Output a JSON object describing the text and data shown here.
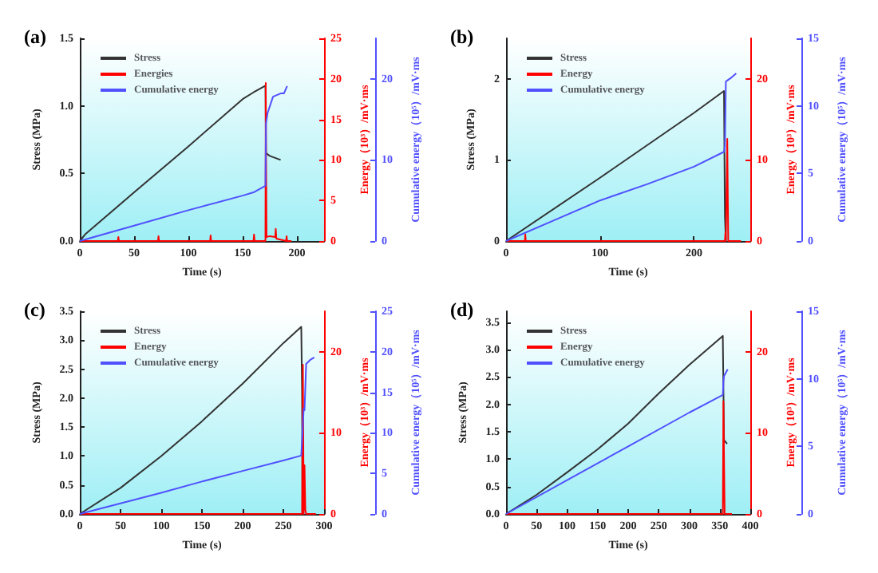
{
  "chart_data": [
    {
      "type": "line",
      "title": "(a)",
      "xlabel": "Time (s)",
      "ylabel": "Stress (MPa)",
      "y2label": "Energy（10³）/mV·ms",
      "y3label": "Cumulative energy（10⁵）/mV·ms",
      "legend": "top left",
      "grid": false,
      "xlim": [
        0,
        225
      ],
      "xticks": [
        0,
        50,
        100,
        150,
        200
      ],
      "ylim": [
        0,
        1.5
      ],
      "yticks": [
        {
          "value": 0,
          "label": "0.0"
        },
        0.5,
        {
          "value": 1,
          "label": "1.0"
        },
        1.5
      ],
      "y2lim": [
        0,
        25
      ],
      "y2ticks": [
        0,
        5,
        10,
        15,
        20,
        25
      ],
      "y3lim": [
        0,
        25
      ],
      "y3ticks": [
        0,
        10,
        20
      ],
      "series": [
        {
          "name": "Stress",
          "color": "#333333",
          "x": [
            0,
            5,
            50,
            100,
            150,
            160,
            171,
            171.5,
            175,
            185
          ],
          "values": [
            0,
            0.05,
            0.36,
            0.7,
            1.05,
            1.1,
            1.15,
            0.65,
            0.63,
            0.6
          ]
        },
        {
          "name": "Energies",
          "color": "#ff0000",
          "axis": "y2",
          "x": [
            0,
            35,
            35.5,
            36,
            72,
            72.5,
            73,
            120,
            120.5,
            121,
            160,
            160.5,
            161,
            171,
            171.3,
            171.6,
            172,
            175,
            180,
            180.5,
            181,
            190,
            190.5,
            191,
            195
          ],
          "values": [
            0,
            0,
            0.5,
            0,
            0,
            0.6,
            0,
            0,
            0.7,
            0,
            0,
            0.8,
            0,
            0,
            19.5,
            10,
            0.5,
            0.6,
            0.5,
            1.5,
            0.3,
            0,
            0.6,
            0,
            0
          ]
        },
        {
          "name": "Cumulative energy",
          "color": "#5050ff",
          "axis": "y3",
          "x": [
            0,
            50,
            100,
            150,
            160,
            171,
            171.5,
            173,
            178,
            185,
            188,
            191
          ],
          "values": [
            0,
            1.9,
            3.8,
            5.6,
            6,
            6.8,
            14.5,
            15.8,
            17.8,
            18.2,
            18.2,
            19.1
          ]
        }
      ]
    },
    {
      "type": "line",
      "title": "(b)",
      "xlabel": "Time (s)",
      "ylabel": "Stress (MPa)",
      "y2label": "Energy（10³）/mV·ms",
      "y3label": "Cumulative energy（10⁵）/mV·ms",
      "legend": "top left",
      "grid": false,
      "xlim": [
        0,
        260
      ],
      "xticks": [
        0,
        100,
        200
      ],
      "ylim": [
        0,
        2.5
      ],
      "yticks": [
        0,
        1,
        2
      ],
      "y2lim": [
        0,
        25
      ],
      "y2ticks": [
        0,
        10,
        20
      ],
      "y3lim": [
        0,
        15
      ],
      "y3ticks": [
        0,
        5,
        10,
        15
      ],
      "series": [
        {
          "name": "Stress",
          "color": "#333333",
          "x": [
            0,
            100,
            200,
            232,
            233,
            234
          ],
          "values": [
            0,
            0.78,
            1.58,
            1.85,
            0.3,
            0
          ]
        },
        {
          "name": "Energy",
          "color": "#ff0000",
          "axis": "y2",
          "x": [
            0,
            20,
            20.5,
            21,
            233,
            233.5,
            234,
            235,
            235.5,
            236,
            236.5,
            237,
            250
          ],
          "values": [
            0,
            0,
            0.8,
            0,
            0,
            1,
            0,
            0,
            12.6,
            12.6,
            0,
            0,
            0
          ]
        },
        {
          "name": "Cumulative energy",
          "color": "#5050ff",
          "axis": "y3",
          "x": [
            0,
            50,
            100,
            150,
            200,
            232,
            233,
            234,
            240,
            245
          ],
          "values": [
            0,
            1.5,
            3,
            4.2,
            5.5,
            6.6,
            7,
            11.8,
            12.1,
            12.4
          ]
        }
      ]
    },
    {
      "type": "line",
      "title": "(c)",
      "xlabel": "Time (s)",
      "ylabel": "Stress (MPa)",
      "y2label": "Energy（10³）/mV·ms",
      "y3label": "Cumulative energy（10⁵）/mV·ms",
      "legend": "top left",
      "grid": false,
      "xlim": [
        0,
        300
      ],
      "xticks": [
        0,
        50,
        100,
        150,
        200,
        250,
        300
      ],
      "ylim": [
        0,
        3.5
      ],
      "yticks": [
        {
          "value": 0,
          "label": "0.0"
        },
        0.5,
        {
          "value": 1,
          "label": "1.0"
        },
        1.5,
        {
          "value": 2,
          "label": "2.0"
        },
        2.5,
        {
          "value": 3,
          "label": "3.0"
        },
        3.5
      ],
      "y2lim": [
        0,
        25
      ],
      "y2ticks": [
        0,
        10,
        20
      ],
      "y3lim": [
        0,
        25
      ],
      "y3ticks": [
        0,
        5,
        10,
        15,
        20,
        25
      ],
      "series": [
        {
          "name": "Stress",
          "color": "#333333",
          "x": [
            0,
            50,
            100,
            150,
            200,
            250,
            272,
            273,
            273.5
          ],
          "values": [
            0,
            0.45,
            1,
            1.6,
            2.25,
            2.95,
            3.23,
            2.1,
            0
          ]
        },
        {
          "name": "Energy",
          "color": "#ff0000",
          "axis": "y2",
          "x": [
            0,
            270,
            273,
            274,
            275,
            276,
            277,
            278,
            290
          ],
          "values": [
            0,
            0,
            0,
            18.4,
            0,
            6,
            0.5,
            0,
            0
          ]
        },
        {
          "name": "Cumulative energy",
          "color": "#5050ff",
          "axis": "y3",
          "x": [
            0,
            50,
            100,
            150,
            200,
            250,
            272,
            273,
            275,
            276,
            278,
            283,
            288
          ],
          "values": [
            0,
            1.3,
            2.6,
            4,
            5.3,
            6.6,
            7.2,
            9,
            13,
            12.8,
            18.5,
            19,
            19.3
          ]
        }
      ]
    },
    {
      "type": "line",
      "title": "(d)",
      "xlabel": "Time (s)",
      "ylabel": "Stress (MPa)",
      "y2label": "Energy（10³）/mV·ms",
      "y3label": "Cumulative energy（10⁵）/mV·ms",
      "legend": "top left",
      "grid": false,
      "xlim": [
        0,
        400
      ],
      "xticks": [
        0,
        50,
        100,
        150,
        200,
        250,
        300,
        350,
        400
      ],
      "ylim": [
        0,
        3.7
      ],
      "yticks": [
        {
          "value": 0,
          "label": "0.0"
        },
        0.5,
        {
          "value": 1,
          "label": "1.0"
        },
        1.5,
        {
          "value": 2,
          "label": "2.0"
        },
        2.5,
        {
          "value": 3,
          "label": "3.0"
        },
        3.5
      ],
      "y2lim": [
        0,
        25
      ],
      "y2ticks": [
        0,
        10,
        20
      ],
      "y3lim": [
        0,
        15
      ],
      "y3ticks": [
        0,
        5,
        10,
        15
      ],
      "series": [
        {
          "name": "Stress",
          "color": "#333333",
          "x": [
            0,
            50,
            100,
            150,
            200,
            250,
            300,
            355,
            357,
            362
          ],
          "values": [
            0,
            0.35,
            0.76,
            1.18,
            1.65,
            2.2,
            2.72,
            3.25,
            1.35,
            1.28
          ]
        },
        {
          "name": "Energy",
          "color": "#ff0000",
          "axis": "y2",
          "x": [
            0,
            355,
            356,
            357,
            358,
            370
          ],
          "values": [
            0,
            0,
            13.9,
            13.9,
            0,
            0
          ]
        },
        {
          "name": "Cumulative energy",
          "color": "#5050ff",
          "axis": "y3",
          "x": [
            0,
            100,
            200,
            300,
            355,
            356,
            357,
            363
          ],
          "values": [
            0,
            2.5,
            5,
            7.5,
            8.8,
            9.8,
            10.2,
            10.7
          ]
        }
      ]
    }
  ]
}
